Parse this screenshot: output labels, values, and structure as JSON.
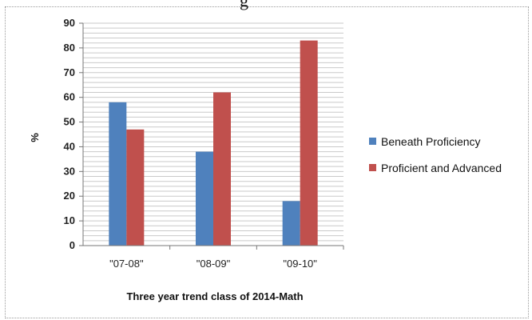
{
  "top_text_fragment": "g",
  "chart_data": {
    "type": "bar",
    "categories": [
      "\"07-08\"",
      "\"08-09\"",
      "\"09-10\""
    ],
    "series": [
      {
        "name": "Beneath Proficiency",
        "values": [
          58,
          38,
          18
        ],
        "color": "#4F81BD"
      },
      {
        "name": "Proficient and Advanced",
        "values": [
          47,
          62,
          83
        ],
        "color": "#C0504D"
      }
    ],
    "yticks": [
      0,
      10,
      20,
      30,
      40,
      50,
      60,
      70,
      80,
      90
    ],
    "ylim": [
      0,
      90
    ],
    "xlabel": "Three year trend class of 2014-Math",
    "ylabel": "%",
    "grid": true,
    "legend_position": "right"
  }
}
